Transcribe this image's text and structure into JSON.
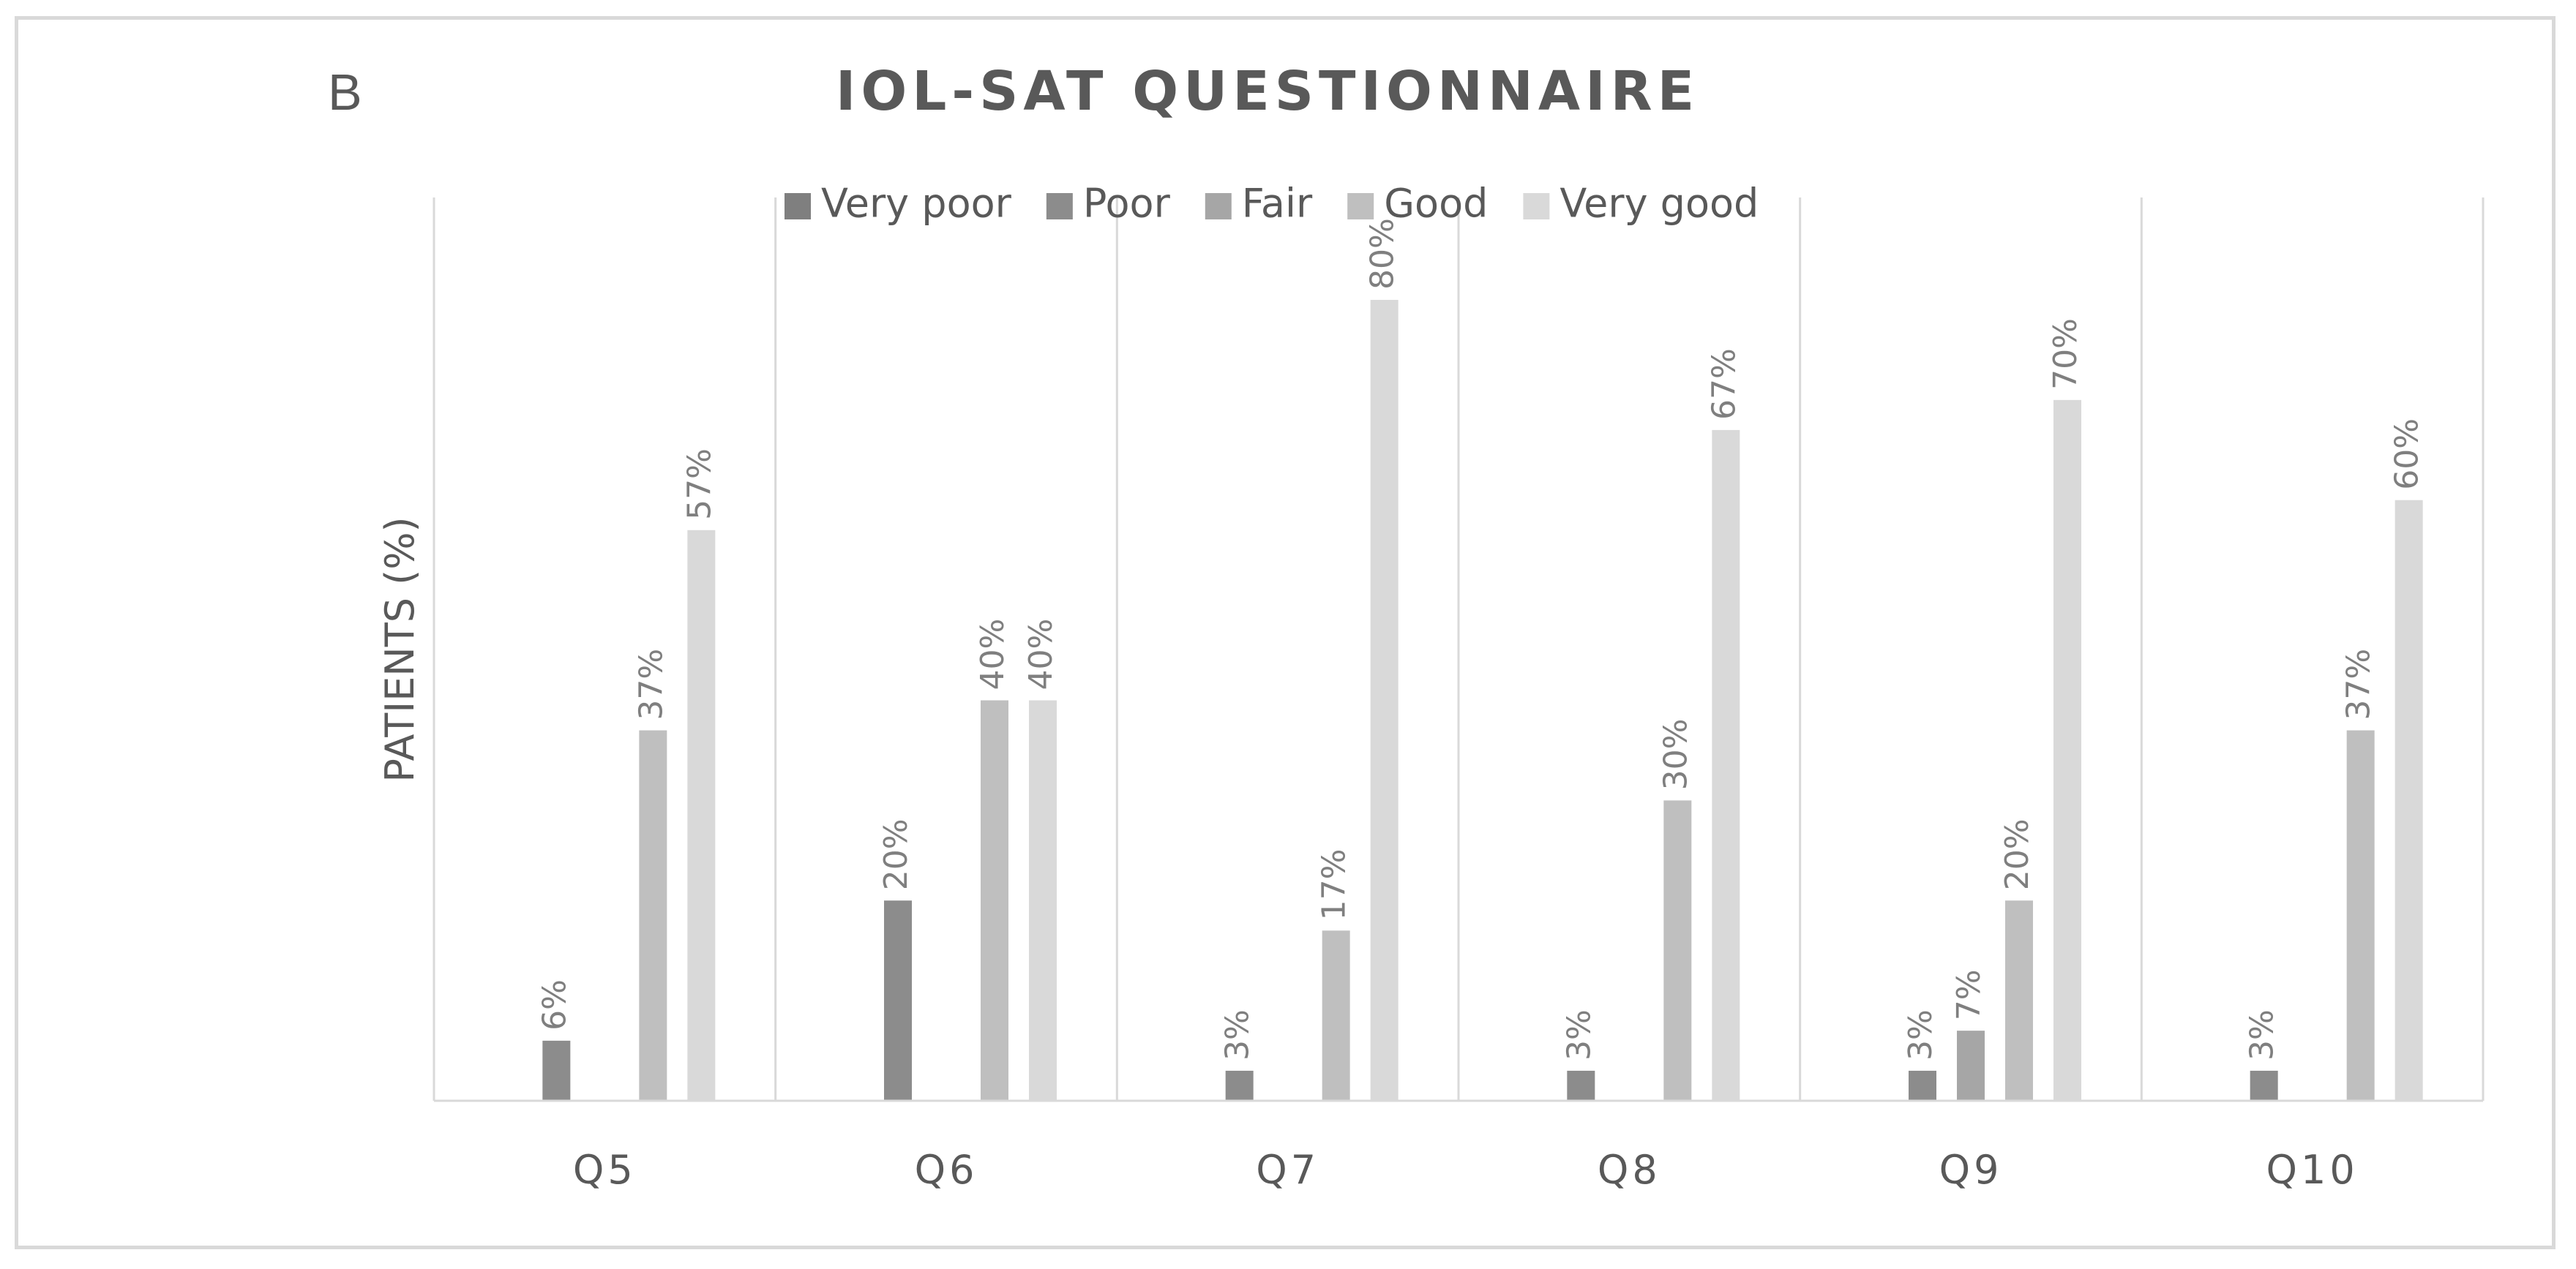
{
  "chart_data": {
    "type": "bar",
    "panel_letter": "B",
    "title": "IOL-SAT QUESTIONNAIRE",
    "xlabel": "",
    "ylabel": "PATIENTS (%)",
    "ylim": [
      0,
      80
    ],
    "grid": false,
    "legend_position": "top",
    "categories": [
      "Q5",
      "Q6",
      "Q7",
      "Q8",
      "Q9",
      "Q10"
    ],
    "series": [
      {
        "name": "Very poor",
        "color": "#7f7f7f",
        "values": [
          0,
          0,
          0,
          0,
          0,
          0
        ]
      },
      {
        "name": "Poor",
        "color": "#8c8c8c",
        "values": [
          6,
          20,
          3,
          3,
          3,
          3
        ]
      },
      {
        "name": "Fair",
        "color": "#a6a6a6",
        "values": [
          0,
          0,
          0,
          0,
          7,
          0
        ]
      },
      {
        "name": "Good",
        "color": "#bfbfbf",
        "values": [
          37,
          40,
          17,
          30,
          20,
          37
        ]
      },
      {
        "name": "Very good",
        "color": "#d9d9d9",
        "values": [
          57,
          40,
          80,
          67,
          70,
          60
        ]
      }
    ],
    "data_labels": [
      [
        "",
        "",
        "",
        "",
        "",
        ""
      ],
      [
        "6%",
        "20%",
        "3%",
        "3%",
        "3%",
        "3%"
      ],
      [
        "",
        "",
        "",
        "",
        "7%",
        ""
      ],
      [
        "37%",
        "40%",
        "17%",
        "30%",
        "20%",
        "37%"
      ],
      [
        "57%",
        "40%",
        "80%",
        "67%",
        "70%",
        "60%"
      ]
    ]
  }
}
